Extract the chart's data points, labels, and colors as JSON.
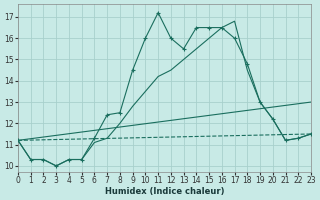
{
  "xlabel": "Humidex (Indice chaleur)",
  "background_color": "#c8eae6",
  "grid_color": "#a8d0cc",
  "line_color": "#1a6e5e",
  "xlim": [
    0,
    23
  ],
  "ylim": [
    9.7,
    17.6
  ],
  "yticks": [
    10,
    11,
    12,
    13,
    14,
    15,
    16,
    17
  ],
  "xticks": [
    0,
    1,
    2,
    3,
    4,
    5,
    6,
    7,
    8,
    9,
    10,
    11,
    12,
    13,
    14,
    15,
    16,
    17,
    18,
    19,
    20,
    21,
    22,
    23
  ],
  "line1_x": [
    0,
    1,
    2,
    3,
    4,
    5,
    6,
    7,
    8,
    9,
    10,
    11,
    12,
    13,
    14,
    15,
    16,
    17,
    18,
    19,
    20,
    21,
    22,
    23
  ],
  "line1_y": [
    11.2,
    10.3,
    10.3,
    10.0,
    10.3,
    10.3,
    11.3,
    12.4,
    12.5,
    14.5,
    16.0,
    17.2,
    16.0,
    15.5,
    16.5,
    16.5,
    16.5,
    16.0,
    14.8,
    13.0,
    12.2,
    11.2,
    11.3,
    11.5
  ],
  "line2_x": [
    0,
    1,
    2,
    3,
    4,
    5,
    6,
    7,
    8,
    9,
    10,
    11,
    12,
    13,
    14,
    15,
    16,
    17,
    18,
    19,
    20,
    21,
    22,
    23
  ],
  "line2_y": [
    11.2,
    10.3,
    10.3,
    10.0,
    10.3,
    10.3,
    11.1,
    11.3,
    12.0,
    12.8,
    13.5,
    14.2,
    14.5,
    15.0,
    15.5,
    16.0,
    16.5,
    16.8,
    14.5,
    13.0,
    12.2,
    11.2,
    11.3,
    11.5
  ],
  "line3_x": [
    0,
    23
  ],
  "line3_y": [
    11.2,
    13.0
  ],
  "line4_x": [
    0,
    23
  ],
  "line4_y": [
    11.2,
    11.5
  ]
}
